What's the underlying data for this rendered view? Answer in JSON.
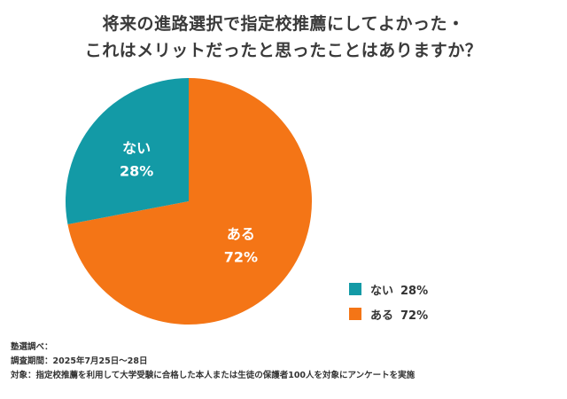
{
  "title": {
    "line1": "将来の進路選択で指定校推薦にしてよかった・",
    "line2": "これはメリットだったと思ったことはありますか？"
  },
  "colors": {
    "yes": "#F47516",
    "no": "#139AA6"
  },
  "chart_data": {
    "type": "pie",
    "title": "将来の進路選択で指定校推薦にしてよかった・これはメリットだったと思ったことはありますか？",
    "slices": [
      {
        "label": "ある",
        "value": 72,
        "display": "72%",
        "color": "#F47516"
      },
      {
        "label": "ない",
        "value": 28,
        "display": "28%",
        "color": "#139AA6"
      }
    ],
    "legend": "bottom-right"
  },
  "legend": [
    {
      "label": "ない",
      "value": "28%"
    },
    {
      "label": "ある",
      "value": "72%"
    }
  ],
  "notes": {
    "source": "塾選調べ：",
    "period": "調査期間：2025年7月25日〜28日",
    "target": "対象：指定校推薦を利用して大学受験に合格した本人または生徒の保護者100人を対象にアンケートを実施"
  }
}
